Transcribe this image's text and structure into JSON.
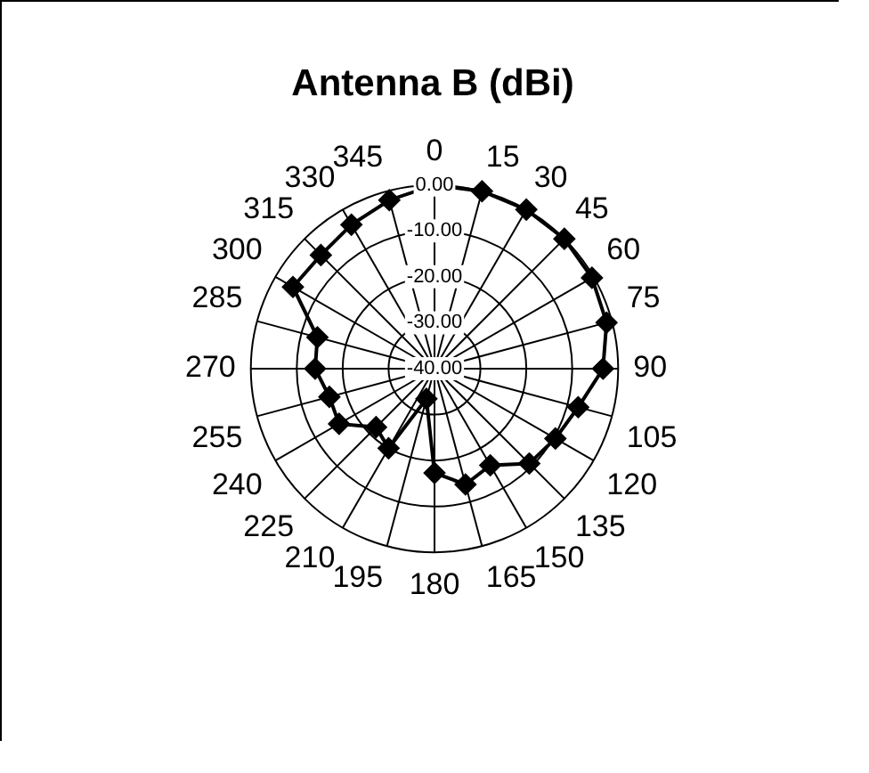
{
  "chart_data": {
    "type": "radar",
    "title": "Antenna B (dBi)",
    "categories": [
      "0",
      "15",
      "30",
      "45",
      "60",
      "75",
      "90",
      "105",
      "120",
      "135",
      "150",
      "165",
      "180",
      "195",
      "210",
      "225",
      "240",
      "255",
      "270",
      "285",
      "300",
      "315",
      "330",
      "345"
    ],
    "series": [
      {
        "color": "#000000",
        "values": [
          0,
          0,
          0,
          0,
          -0.4,
          -1.2,
          -3.3,
          -7.6,
          -9.6,
          -10.8,
          -15.7,
          -13.9,
          -17.3,
          -33.2,
          -20,
          -22,
          -16,
          -16.3,
          -14,
          -13.6,
          -4.4,
          -5,
          -3.8,
          -2
        ]
      }
    ],
    "ylim": [
      -40,
      0
    ],
    "yticks": [
      {
        "value": -40,
        "label": "-40.00"
      },
      {
        "value": -30,
        "label": "-30.00"
      },
      {
        "value": -20,
        "label": "-20.00"
      },
      {
        "value": -10,
        "label": "-10.00"
      },
      {
        "value": 0,
        "label": "0.00"
      }
    ],
    "grid": true,
    "marker": "diamond",
    "legend": false
  }
}
